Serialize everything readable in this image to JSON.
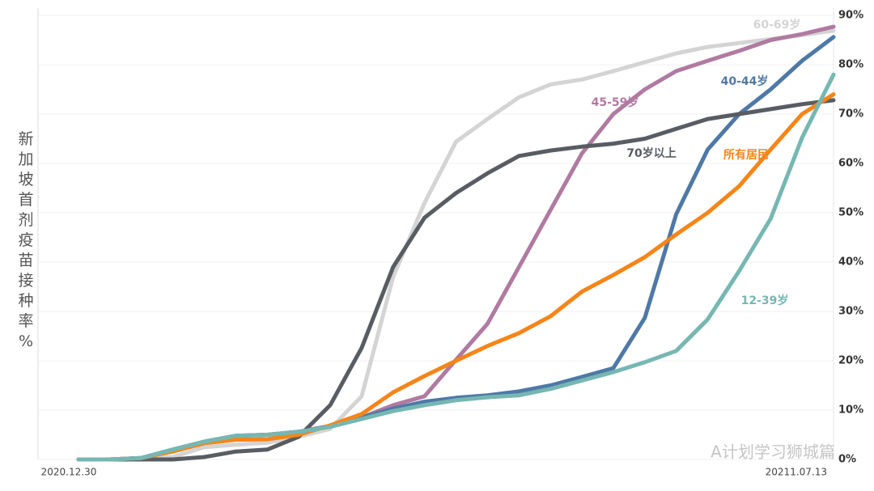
{
  "chart_data": {
    "type": "line",
    "y_label": "新加坡首剂疫苗接种率%",
    "watermark": "A计划学习狮城篇",
    "categories": [
      "2020.12.30",
      null,
      null,
      null,
      null,
      null,
      null,
      null,
      null,
      null,
      null,
      null,
      null,
      null,
      null,
      null,
      null,
      null,
      null,
      null,
      null,
      null,
      null,
      null,
      "20211.07.13"
    ],
    "ylim": [
      0,
      90
    ],
    "yticks": [
      {
        "value": 0,
        "label": "0%"
      },
      {
        "value": 10,
        "label": "10%"
      },
      {
        "value": 20,
        "label": "20%"
      },
      {
        "value": 30,
        "label": "30%"
      },
      {
        "value": 40,
        "label": "40%"
      },
      {
        "value": 50,
        "label": "50%"
      },
      {
        "value": 60,
        "label": "60%"
      },
      {
        "value": 70,
        "label": "70%"
      },
      {
        "value": 80,
        "label": "80%"
      },
      {
        "value": 90,
        "label": "90%"
      }
    ],
    "grid": true,
    "series": [
      {
        "name": "60-69岁",
        "color": "#d4d4d4",
        "values": [
          0,
          0,
          0,
          0.5,
          2.5,
          3,
          3.4,
          4.6,
          6.2,
          12.8,
          37,
          52,
          64.4,
          69,
          73.4,
          76,
          77,
          78.7,
          80.5,
          82.3,
          83.6,
          84.4,
          85.2,
          86,
          86.9
        ]
      },
      {
        "name": "45-59岁",
        "color": "#b07aa1",
        "values": [
          0,
          0,
          0.3,
          2,
          3.6,
          4.8,
          5,
          5.6,
          6.8,
          8.5,
          11,
          12.8,
          20.2,
          27.5,
          39,
          50.5,
          62,
          70,
          75,
          78.7,
          80.8,
          82.8,
          85,
          86.2,
          87.7
        ]
      },
      {
        "name": "40-44岁",
        "color": "#4e79a7",
        "values": [
          0,
          0,
          0.3,
          2,
          3.6,
          4.8,
          5,
          5.6,
          6.7,
          8.5,
          10.3,
          11.7,
          12.5,
          13,
          13.8,
          15,
          16.7,
          18.5,
          28.7,
          49.7,
          62.8,
          70,
          75,
          80.8,
          85.6
        ]
      },
      {
        "name": "70岁以上",
        "color": "#585d63",
        "values": [
          0,
          0,
          0,
          0,
          0.5,
          1.6,
          2,
          4.6,
          11,
          22.6,
          39,
          49,
          54,
          58,
          61.5,
          62.6,
          63.4,
          64,
          65,
          67,
          69,
          70,
          71,
          72,
          72.8
        ]
      },
      {
        "name": "所有居民",
        "color": "#f58518",
        "values": [
          0,
          0,
          0.3,
          1.6,
          3.3,
          4,
          4.1,
          5,
          6.9,
          9.2,
          13.6,
          16.9,
          20,
          23,
          25.6,
          29,
          34,
          37.4,
          41,
          45.6,
          50,
          55.4,
          62.8,
          70,
          74
        ]
      },
      {
        "name": "12-39岁",
        "color": "#76b7b2",
        "values": [
          0,
          0,
          0.3,
          2,
          3.6,
          4.8,
          5,
          5.6,
          6.6,
          8.2,
          9.8,
          11,
          12,
          12.6,
          13,
          14.3,
          16,
          17.7,
          19.7,
          22,
          28.4,
          38.2,
          48.8,
          65.2,
          78
        ]
      }
    ]
  }
}
